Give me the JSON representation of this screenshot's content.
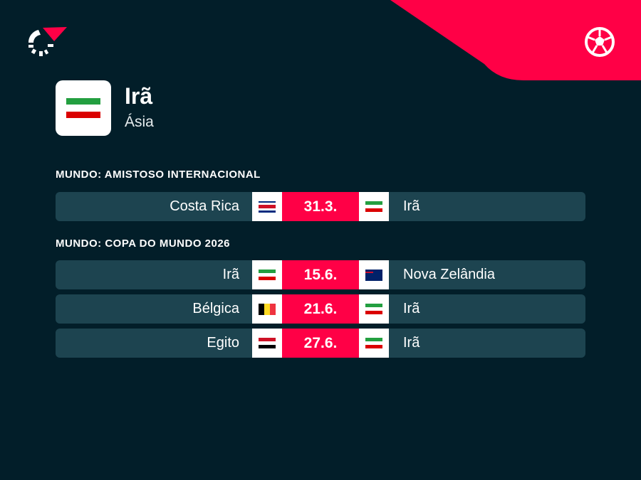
{
  "colors": {
    "background": "#021e29",
    "accent": "#ff0046",
    "row": "#1d4450"
  },
  "header": {
    "logo_icon": "flashscore-logo-icon",
    "sport_icon": "soccer-ball-icon"
  },
  "team": {
    "name": "Irã",
    "region": "Ásia",
    "flag": "iran"
  },
  "sections": [
    {
      "title": "MUNDO: AMISTOSO INTERNACIONAL",
      "matches": [
        {
          "home": "Costa Rica",
          "home_flag": "costa-rica",
          "date": "31.3.",
          "away": "Irã",
          "away_flag": "iran"
        }
      ]
    },
    {
      "title": "MUNDO: COPA DO MUNDO 2026",
      "matches": [
        {
          "home": "Irã",
          "home_flag": "iran",
          "date": "15.6.",
          "away": "Nova Zelândia",
          "away_flag": "new-zealand"
        },
        {
          "home": "Bélgica",
          "home_flag": "belgium",
          "date": "21.6.",
          "away": "Irã",
          "away_flag": "iran"
        },
        {
          "home": "Egito",
          "home_flag": "egypt",
          "date": "27.6.",
          "away": "Irã",
          "away_flag": "iran"
        }
      ]
    }
  ]
}
